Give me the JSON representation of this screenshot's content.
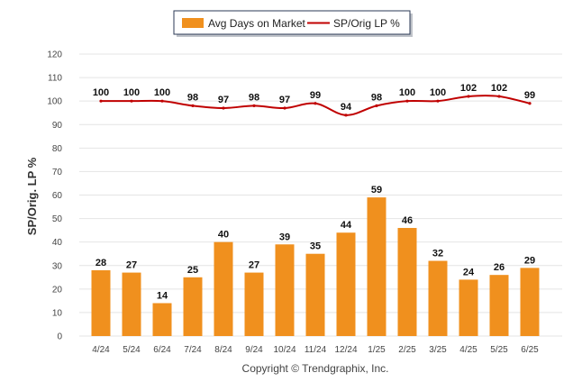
{
  "chart_data": {
    "type": "bar",
    "categories": [
      "4/24",
      "5/24",
      "6/24",
      "7/24",
      "8/24",
      "9/24",
      "10/24",
      "11/24",
      "12/24",
      "1/25",
      "2/25",
      "3/25",
      "4/25",
      "5/25",
      "6/25"
    ],
    "series": [
      {
        "name": "Avg Days on Market",
        "type": "bar",
        "color": "#f0901e",
        "values": [
          28,
          27,
          14,
          25,
          40,
          27,
          39,
          35,
          44,
          59,
          46,
          32,
          24,
          26,
          29
        ]
      },
      {
        "name": "SP/Orig LP %",
        "type": "line",
        "color": "#c00000",
        "values": [
          100,
          100,
          100,
          98,
          97,
          98,
          97,
          99,
          94,
          98,
          100,
          100,
          102,
          102,
          99
        ]
      }
    ],
    "ylabel": "SP/Orig. LP %",
    "ylim": [
      0,
      120
    ],
    "yticks": [
      0,
      10,
      20,
      30,
      40,
      50,
      60,
      70,
      80,
      90,
      100,
      110,
      120
    ],
    "grid": true,
    "legend_position": "top-center"
  },
  "footer": {
    "copyright": "Copyright © Trendgraphix, Inc."
  }
}
